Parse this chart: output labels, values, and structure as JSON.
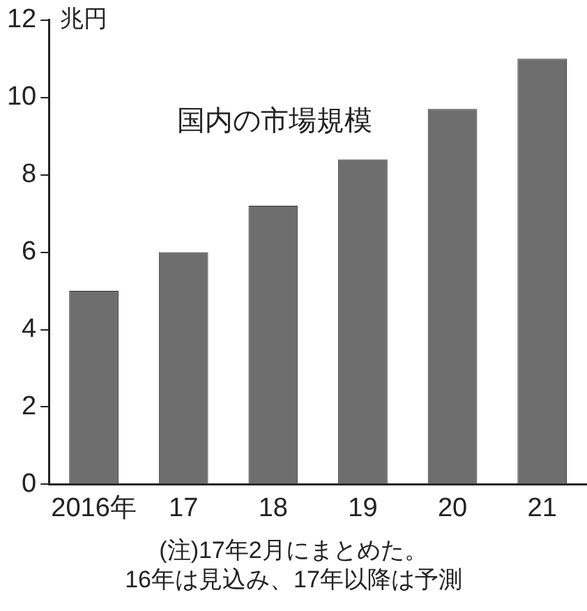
{
  "chart_data": {
    "type": "bar",
    "title": "国内の市場規模",
    "ylabel": "兆円",
    "categories": [
      "2016年",
      "17",
      "18",
      "19",
      "20",
      "21"
    ],
    "values": [
      5.0,
      6.0,
      7.2,
      8.4,
      9.7,
      11.0
    ],
    "color": "#6e6e6e",
    "ylim": [
      0,
      12
    ],
    "yticks": [
      0,
      2,
      4,
      6,
      8,
      10,
      12
    ],
    "grid": false,
    "annotations": [
      "(注)17年2月にまとめた。\n16年は見込み、17年以降は予測"
    ]
  }
}
